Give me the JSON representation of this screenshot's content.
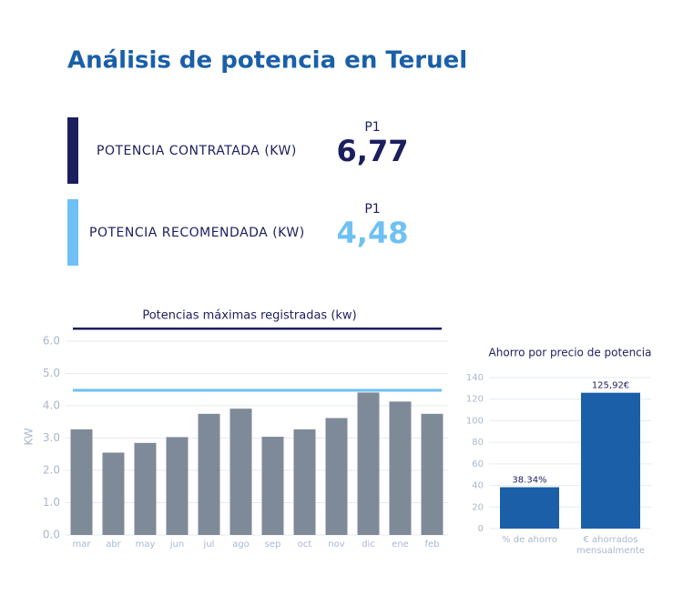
{
  "title": "Análisis de potencia en Teruel",
  "cards": [
    {
      "label": "POTENCIA CONTRATADA (KW)",
      "period": "P1",
      "value": "6,77",
      "color": "#1c1f5e"
    },
    {
      "label": "POTENCIA RECOMENDADA (KW)",
      "period": "P1",
      "value": "4,48",
      "color": "#6ec0f5"
    }
  ],
  "chart_data": [
    {
      "type": "bar",
      "title": "Potencias máximas registradas (kw)",
      "ylabel": "KW",
      "categories": [
        "mar",
        "abr",
        "may",
        "jun",
        "jul",
        "ago",
        "sep",
        "oct",
        "nov",
        "dic",
        "ene",
        "feb"
      ],
      "values": [
        3.27,
        2.55,
        2.85,
        3.03,
        3.75,
        3.91,
        3.04,
        3.27,
        3.62,
        4.41,
        4.13,
        3.75
      ],
      "color": "#7f8a99",
      "reference_line": 4.48,
      "reference_color": "#6ec0f5",
      "ylim": [
        0,
        6
      ],
      "yticks": [
        {
          "value": 0,
          "label": "0.0"
        },
        {
          "value": 1,
          "label": "1.0"
        },
        {
          "value": 2,
          "label": "2.0"
        },
        {
          "value": 3,
          "label": "3.0"
        },
        {
          "value": 4,
          "label": "4.0"
        },
        {
          "value": 5,
          "label": "5.0"
        },
        {
          "value": 6,
          "label": "6.0"
        }
      ],
      "grid": true
    },
    {
      "type": "bar",
      "title": "Ahorro por precio de potencia",
      "categories": [
        "% de ahorro",
        "€ ahorrados mensualmente"
      ],
      "values": [
        38.34,
        125.92
      ],
      "value_labels": [
        "38.34%",
        "125,92€"
      ],
      "color": "#1a5fa8",
      "ylim": [
        0,
        140
      ],
      "yticks": [
        0,
        20,
        40,
        60,
        80,
        100,
        120,
        140
      ],
      "grid": true
    }
  ]
}
